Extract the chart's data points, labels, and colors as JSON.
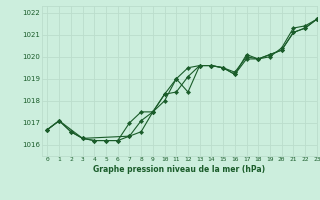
{
  "title": "Graphe pression niveau de la mer (hPa)",
  "xlim": [
    -0.5,
    23
  ],
  "ylim": [
    1015.5,
    1022.3
  ],
  "xticks": [
    0,
    1,
    2,
    3,
    4,
    5,
    6,
    7,
    8,
    9,
    10,
    11,
    12,
    13,
    14,
    15,
    16,
    17,
    18,
    19,
    20,
    21,
    22,
    23
  ],
  "yticks": [
    1016,
    1017,
    1018,
    1019,
    1020,
    1021,
    1022
  ],
  "bg_color": "#cceedd",
  "grid_color": "#bbddcc",
  "line_color": "#1a5c2a",
  "text_color": "#1a5c2a",
  "series1_x": [
    0,
    1,
    2,
    3,
    4,
    5,
    6,
    7,
    8,
    9,
    10,
    11,
    12,
    13,
    14,
    15,
    16,
    17,
    18,
    19,
    20,
    21,
    22,
    23
  ],
  "series1_y": [
    1016.7,
    1017.1,
    1016.6,
    1016.3,
    1016.2,
    1016.2,
    1016.2,
    1016.4,
    1017.1,
    1017.5,
    1018.3,
    1018.4,
    1019.1,
    1019.6,
    1019.6,
    1019.5,
    1019.2,
    1019.9,
    1019.9,
    1020.1,
    1020.3,
    1021.1,
    1021.3,
    1021.7
  ],
  "series2_x": [
    0,
    1,
    2,
    3,
    4,
    5,
    6,
    7,
    8,
    9,
    10,
    11,
    12,
    13,
    14,
    15,
    16,
    17,
    18,
    19,
    20,
    21,
    22,
    23
  ],
  "series2_y": [
    1016.7,
    1017.1,
    1016.6,
    1016.3,
    1016.2,
    1016.2,
    1016.2,
    1017.0,
    1017.5,
    1017.5,
    1018.3,
    1019.0,
    1018.4,
    1019.6,
    1019.6,
    1019.5,
    1019.3,
    1020.0,
    1019.9,
    1020.1,
    1020.3,
    1021.1,
    1021.3,
    1021.7
  ],
  "series3_x": [
    0,
    1,
    3,
    7,
    8,
    9,
    10,
    11,
    12,
    13,
    14,
    15,
    16,
    17,
    18,
    19,
    20,
    21,
    22,
    23
  ],
  "series3_y": [
    1016.7,
    1017.1,
    1016.3,
    1016.4,
    1016.6,
    1017.5,
    1018.0,
    1019.0,
    1019.5,
    1019.6,
    1019.6,
    1019.5,
    1019.2,
    1020.1,
    1019.9,
    1020.0,
    1020.4,
    1021.3,
    1021.4,
    1021.7
  ]
}
